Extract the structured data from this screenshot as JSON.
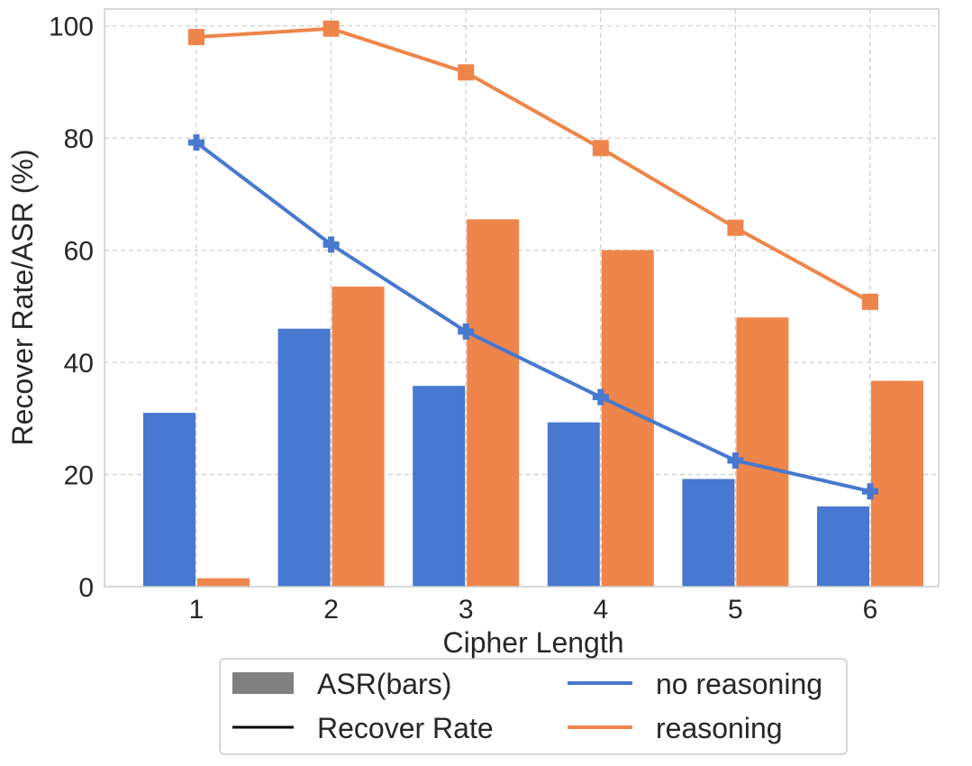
{
  "chart_data": {
    "type": "bar",
    "title": "",
    "xlabel": "Cipher Length",
    "ylabel": "Recover Rate/ASR (%)",
    "categories": [
      "1",
      "2",
      "3",
      "4",
      "5",
      "6"
    ],
    "ylim": [
      0,
      103
    ],
    "yticks": [
      "0",
      "20",
      "40",
      "60",
      "80",
      "100"
    ],
    "grid": true,
    "bars": [
      {
        "name": "no reasoning",
        "color": "#4878cf",
        "values": [
          31,
          46,
          35.8,
          29.3,
          19.2,
          14.3
        ]
      },
      {
        "name": "reasoning",
        "color": "#ee854a",
        "values": [
          1.5,
          53.5,
          65.5,
          60,
          48,
          36.7
        ]
      }
    ],
    "lines": [
      {
        "name": "no reasoning",
        "color": "#4878cf",
        "marker": "plus",
        "values": [
          79.2,
          61,
          45.5,
          33.8,
          22.5,
          17
        ]
      },
      {
        "name": "reasoning",
        "color": "#ee854a",
        "marker": "square",
        "values": [
          98,
          99.5,
          91.7,
          78.2,
          64,
          50.8
        ]
      }
    ],
    "legend": {
      "position": "bottom",
      "entries": [
        {
          "label": "ASR(bars)",
          "kind": "patch",
          "color": "#808080"
        },
        {
          "label": "no reasoning",
          "kind": "line",
          "color": "#4878cf"
        },
        {
          "label": "Recover Rate",
          "kind": "line",
          "color": "#000000"
        },
        {
          "label": "reasoning",
          "kind": "line",
          "color": "#ee854a"
        }
      ]
    }
  }
}
